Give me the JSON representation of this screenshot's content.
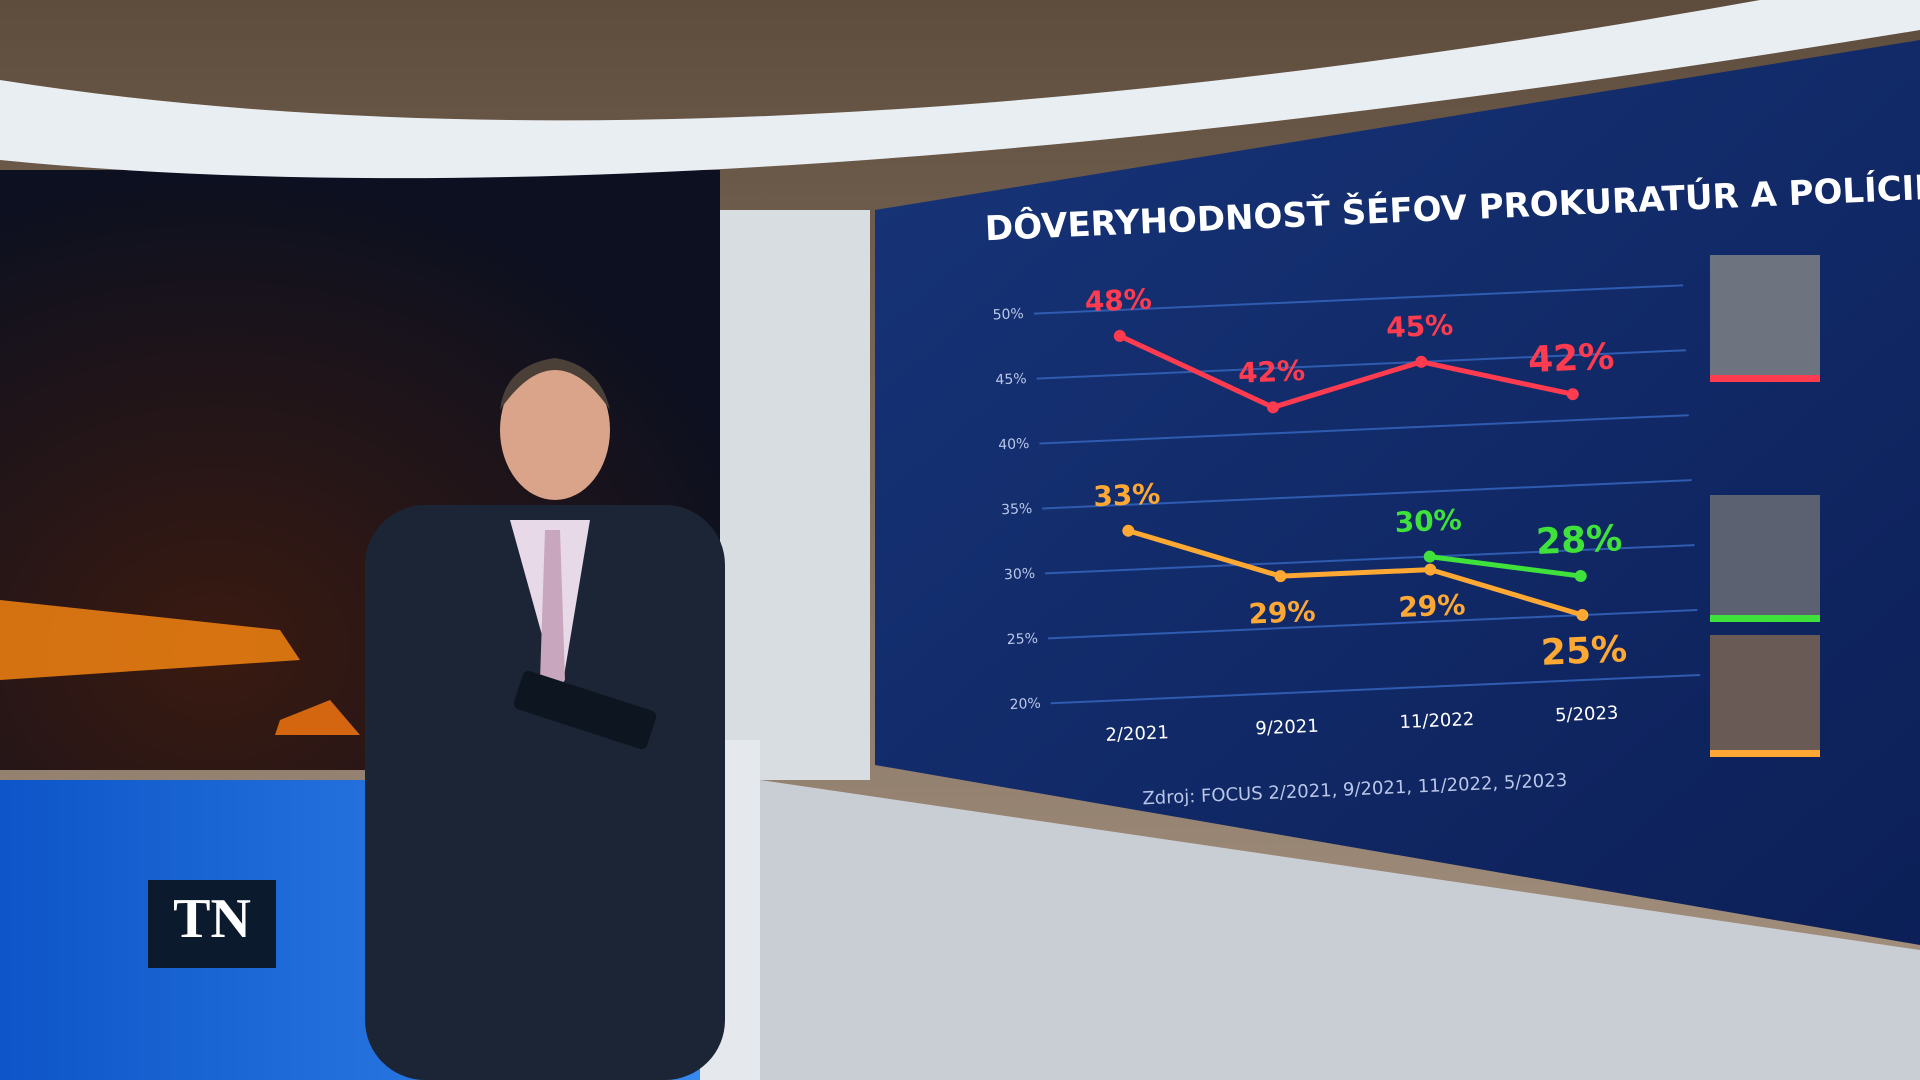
{
  "channel_logo": "TN",
  "chart_data": {
    "type": "line",
    "title": "DÔVERYHODNOSŤ ŠÉFOV PROKURATÚR A POLÍCIE",
    "categories": [
      "2/2021",
      "9/2021",
      "11/2022",
      "5/2023"
    ],
    "series": [
      {
        "color": "#ff3b4f",
        "values": [
          48,
          42,
          45,
          42
        ],
        "value_labels": [
          "48%",
          "42%",
          "45%",
          "42%"
        ]
      },
      {
        "color": "#ffa934",
        "values": [
          33,
          29,
          29,
          25
        ],
        "value_labels": [
          "33%",
          "29%",
          "29%",
          "25%"
        ]
      },
      {
        "color": "#3fe23b",
        "values": [
          null,
          null,
          30,
          28
        ],
        "value_labels": [
          null,
          null,
          "30%",
          "28%"
        ]
      }
    ],
    "ylim": [
      20,
      50
    ],
    "yticks": [
      {
        "value": 20,
        "label": "20%"
      },
      {
        "value": 25,
        "label": "25%"
      },
      {
        "value": 30,
        "label": "30%"
      },
      {
        "value": 35,
        "label": "35%"
      },
      {
        "value": 40,
        "label": "40%"
      },
      {
        "value": 45,
        "label": "45%"
      },
      {
        "value": 50,
        "label": "50%"
      }
    ],
    "grid": true,
    "source": "Zdroj: FOCUS 2/2021, 9/2021, 11/2022, 5/2023"
  }
}
